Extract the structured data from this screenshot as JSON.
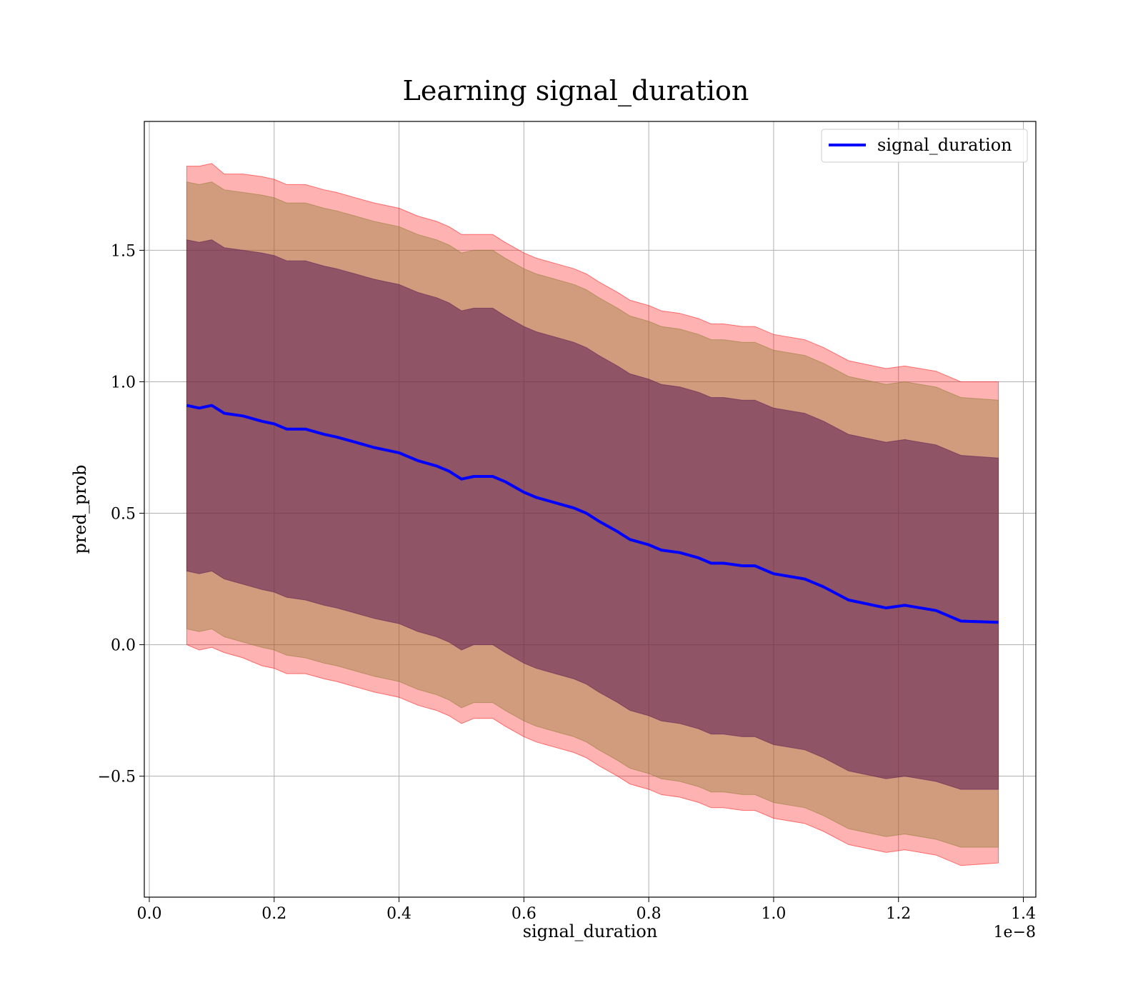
{
  "chart_data": {
    "type": "area",
    "title": "Learning signal_duration",
    "xlabel": "signal_duration",
    "ylabel": "pred_prob",
    "x_offset_label": "1e−8",
    "xlim": [
      -0.008,
      1.42
    ],
    "ylim": [
      -0.96,
      1.99
    ],
    "xticks": [
      0.0,
      0.2,
      0.4,
      0.6,
      0.8,
      1.0,
      1.2,
      1.4
    ],
    "xtick_labels": [
      "0.0",
      "0.2",
      "0.4",
      "0.6",
      "0.8",
      "1.0",
      "1.2",
      "1.4"
    ],
    "yticks": [
      -0.5,
      0.0,
      0.5,
      1.0,
      1.5
    ],
    "ytick_labels": [
      "−0.5",
      "0.0",
      "0.5",
      "1.0",
      "1.5"
    ],
    "grid": true,
    "legend_position": "top-right",
    "series": [
      {
        "name": "signal_duration",
        "color": "#0000ff",
        "x": [
          0.06,
          0.08,
          0.1,
          0.12,
          0.15,
          0.18,
          0.2,
          0.22,
          0.25,
          0.28,
          0.3,
          0.33,
          0.36,
          0.38,
          0.4,
          0.43,
          0.46,
          0.48,
          0.5,
          0.52,
          0.55,
          0.57,
          0.6,
          0.62,
          0.65,
          0.68,
          0.7,
          0.72,
          0.75,
          0.77,
          0.8,
          0.82,
          0.85,
          0.88,
          0.9,
          0.92,
          0.95,
          0.97,
          1.0,
          1.05,
          1.08,
          1.12,
          1.18,
          1.21,
          1.26,
          1.3,
          1.36
        ],
        "y": [
          0.91,
          0.9,
          0.91,
          0.88,
          0.87,
          0.85,
          0.84,
          0.82,
          0.82,
          0.8,
          0.79,
          0.77,
          0.75,
          0.74,
          0.73,
          0.7,
          0.68,
          0.66,
          0.63,
          0.64,
          0.64,
          0.62,
          0.58,
          0.56,
          0.54,
          0.52,
          0.5,
          0.47,
          0.43,
          0.4,
          0.38,
          0.36,
          0.35,
          0.33,
          0.31,
          0.31,
          0.3,
          0.3,
          0.27,
          0.25,
          0.22,
          0.17,
          0.14,
          0.15,
          0.13,
          0.09,
          0.085
        ]
      }
    ],
    "bands": [
      {
        "color": "#ff0000",
        "opacity": 0.3,
        "x": [
          0.06,
          0.08,
          0.1,
          0.12,
          0.15,
          0.18,
          0.2,
          0.22,
          0.25,
          0.28,
          0.3,
          0.33,
          0.36,
          0.38,
          0.4,
          0.43,
          0.46,
          0.48,
          0.5,
          0.52,
          0.55,
          0.57,
          0.6,
          0.62,
          0.65,
          0.68,
          0.7,
          0.72,
          0.75,
          0.77,
          0.8,
          0.82,
          0.85,
          0.88,
          0.9,
          0.92,
          0.95,
          0.97,
          1.0,
          1.05,
          1.08,
          1.12,
          1.18,
          1.21,
          1.26,
          1.3,
          1.36
        ],
        "lower": [
          0.0,
          -0.02,
          -0.01,
          -0.03,
          -0.05,
          -0.08,
          -0.09,
          -0.11,
          -0.11,
          -0.13,
          -0.14,
          -0.16,
          -0.18,
          -0.19,
          -0.2,
          -0.23,
          -0.25,
          -0.27,
          -0.3,
          -0.28,
          -0.28,
          -0.31,
          -0.35,
          -0.37,
          -0.39,
          -0.41,
          -0.43,
          -0.46,
          -0.5,
          -0.53,
          -0.55,
          -0.57,
          -0.58,
          -0.6,
          -0.62,
          -0.62,
          -0.63,
          -0.63,
          -0.66,
          -0.68,
          -0.71,
          -0.76,
          -0.79,
          -0.78,
          -0.8,
          -0.84,
          -0.83
        ],
        "upper": [
          1.82,
          1.82,
          1.83,
          1.79,
          1.79,
          1.78,
          1.77,
          1.75,
          1.75,
          1.73,
          1.72,
          1.7,
          1.68,
          1.67,
          1.66,
          1.63,
          1.61,
          1.59,
          1.56,
          1.56,
          1.56,
          1.53,
          1.49,
          1.47,
          1.45,
          1.43,
          1.41,
          1.38,
          1.34,
          1.31,
          1.29,
          1.27,
          1.26,
          1.24,
          1.22,
          1.22,
          1.21,
          1.21,
          1.18,
          1.16,
          1.13,
          1.08,
          1.05,
          1.06,
          1.04,
          1.0,
          1.0
        ]
      },
      {
        "color": "#8b7a2e",
        "opacity": 0.4,
        "x": [
          0.06,
          0.08,
          0.1,
          0.12,
          0.15,
          0.18,
          0.2,
          0.22,
          0.25,
          0.28,
          0.3,
          0.33,
          0.36,
          0.38,
          0.4,
          0.43,
          0.46,
          0.48,
          0.5,
          0.52,
          0.55,
          0.57,
          0.6,
          0.62,
          0.65,
          0.68,
          0.7,
          0.72,
          0.75,
          0.77,
          0.8,
          0.82,
          0.85,
          0.88,
          0.9,
          0.92,
          0.95,
          0.97,
          1.0,
          1.05,
          1.08,
          1.12,
          1.18,
          1.21,
          1.26,
          1.3,
          1.36
        ],
        "lower": [
          0.06,
          0.05,
          0.06,
          0.03,
          0.01,
          -0.01,
          -0.02,
          -0.04,
          -0.05,
          -0.07,
          -0.08,
          -0.1,
          -0.12,
          -0.13,
          -0.14,
          -0.17,
          -0.19,
          -0.21,
          -0.24,
          -0.22,
          -0.22,
          -0.25,
          -0.29,
          -0.31,
          -0.33,
          -0.35,
          -0.37,
          -0.4,
          -0.44,
          -0.47,
          -0.49,
          -0.51,
          -0.52,
          -0.54,
          -0.56,
          -0.56,
          -0.57,
          -0.57,
          -0.6,
          -0.62,
          -0.65,
          -0.7,
          -0.73,
          -0.72,
          -0.74,
          -0.77,
          -0.77
        ],
        "upper": [
          1.76,
          1.75,
          1.76,
          1.73,
          1.72,
          1.71,
          1.7,
          1.68,
          1.68,
          1.66,
          1.65,
          1.63,
          1.61,
          1.6,
          1.59,
          1.56,
          1.54,
          1.52,
          1.49,
          1.5,
          1.5,
          1.47,
          1.43,
          1.41,
          1.39,
          1.37,
          1.35,
          1.32,
          1.28,
          1.25,
          1.23,
          1.21,
          1.2,
          1.18,
          1.16,
          1.16,
          1.15,
          1.15,
          1.12,
          1.1,
          1.07,
          1.02,
          0.99,
          1.0,
          0.98,
          0.94,
          0.93
        ]
      },
      {
        "color": "#5a1a52",
        "opacity": 0.55,
        "x": [
          0.06,
          0.08,
          0.1,
          0.12,
          0.15,
          0.18,
          0.2,
          0.22,
          0.25,
          0.28,
          0.3,
          0.33,
          0.36,
          0.38,
          0.4,
          0.43,
          0.46,
          0.48,
          0.5,
          0.52,
          0.55,
          0.57,
          0.6,
          0.62,
          0.65,
          0.68,
          0.7,
          0.72,
          0.75,
          0.77,
          0.8,
          0.82,
          0.85,
          0.88,
          0.9,
          0.92,
          0.95,
          0.97,
          1.0,
          1.05,
          1.08,
          1.12,
          1.18,
          1.21,
          1.26,
          1.3,
          1.36
        ],
        "lower": [
          0.28,
          0.27,
          0.28,
          0.25,
          0.23,
          0.21,
          0.2,
          0.18,
          0.17,
          0.15,
          0.14,
          0.12,
          0.1,
          0.09,
          0.08,
          0.05,
          0.03,
          0.01,
          -0.02,
          0.0,
          0.0,
          -0.03,
          -0.07,
          -0.09,
          -0.11,
          -0.13,
          -0.15,
          -0.18,
          -0.22,
          -0.25,
          -0.27,
          -0.29,
          -0.3,
          -0.32,
          -0.34,
          -0.34,
          -0.35,
          -0.35,
          -0.38,
          -0.4,
          -0.43,
          -0.48,
          -0.51,
          -0.5,
          -0.52,
          -0.55,
          -0.55
        ],
        "upper": [
          1.54,
          1.53,
          1.54,
          1.51,
          1.5,
          1.49,
          1.48,
          1.46,
          1.46,
          1.44,
          1.43,
          1.41,
          1.39,
          1.38,
          1.37,
          1.34,
          1.32,
          1.3,
          1.27,
          1.28,
          1.28,
          1.25,
          1.21,
          1.19,
          1.17,
          1.15,
          1.13,
          1.1,
          1.06,
          1.03,
          1.01,
          0.99,
          0.98,
          0.96,
          0.94,
          0.94,
          0.93,
          0.93,
          0.9,
          0.88,
          0.85,
          0.8,
          0.77,
          0.78,
          0.76,
          0.72,
          0.71
        ]
      }
    ]
  }
}
